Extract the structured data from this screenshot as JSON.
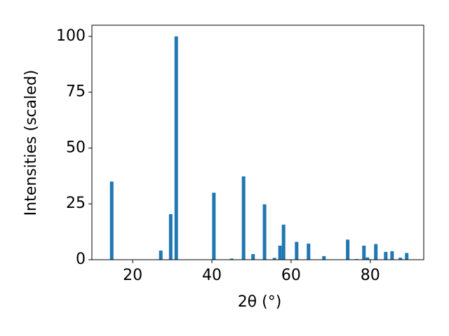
{
  "chart_data": {
    "type": "bar",
    "xlabel": "2θ (°)",
    "ylabel": "Intensities (scaled)",
    "color": "#1f77b4",
    "x": [
      14.7,
      27.1,
      29.6,
      31.0,
      40.5,
      45.0,
      48.0,
      50.4,
      53.3,
      55.8,
      57.2,
      58.1,
      61.4,
      64.4,
      68.3,
      74.3,
      76.5,
      78.4,
      79.3,
      81.4,
      83.9,
      85.5,
      87.6,
      89.2
    ],
    "values": [
      35,
      4.1,
      20.4,
      100,
      30,
      0.5,
      37.3,
      2.5,
      24.8,
      0.8,
      6.3,
      15.7,
      8,
      7.2,
      1.6,
      9,
      0.3,
      6.3,
      1,
      7,
      3.5,
      3.8,
      0.9,
      3
    ],
    "xlim": [
      9.7,
      93.5
    ],
    "ylim": [
      0,
      105
    ],
    "xticks": [
      20,
      40,
      60,
      80
    ],
    "yticks": [
      0,
      25,
      50,
      75,
      100
    ]
  }
}
